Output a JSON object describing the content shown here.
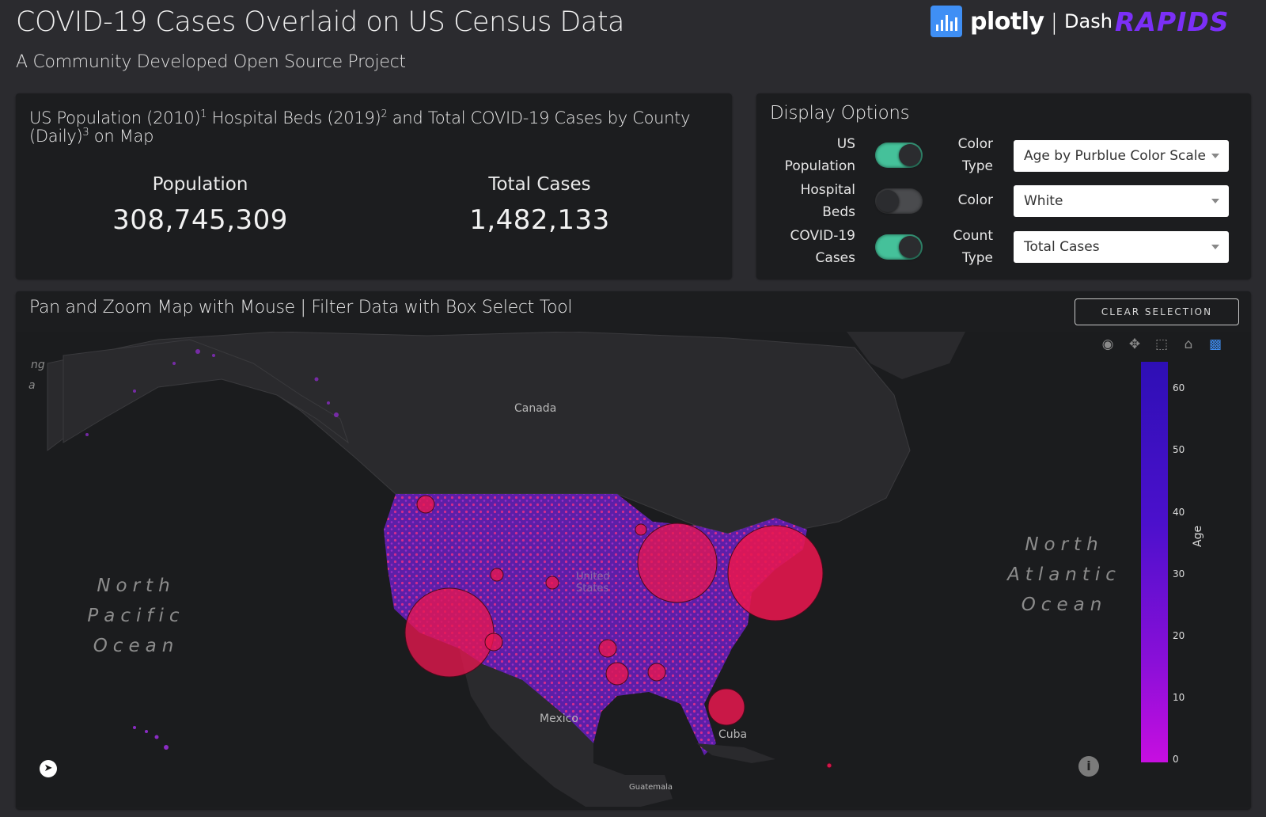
{
  "header": {
    "title": "COVID-19 Cases Overlaid on US Census Data",
    "subtitle": "A Community Developed Open Source Project",
    "brand_plotly": "plotly",
    "brand_dash": "Dash",
    "brand_rapids": "RAPIDS",
    "accent_color": "#7b2ff7"
  },
  "stats": {
    "heading_1": "US Population (2010)",
    "sup_1": "1",
    "heading_2": " Hospital Beds (2019)",
    "sup_2": "2",
    "heading_3": " and Total COVID-19 Cases by County (Daily)",
    "sup_3": "3",
    "heading_4": " on Map",
    "population_label": "Population",
    "population_value": "308,745,309",
    "cases_label": "Total Cases",
    "cases_value": "1,482,133"
  },
  "options": {
    "title": "Display Options",
    "population_label": "US Population",
    "population_on": true,
    "beds_label": "Hospital Beds",
    "beds_on": false,
    "covid_label": "COVID-19 Cases",
    "covid_on": true,
    "color_type_label": "Color Type",
    "color_type_value": "Age by Purblue Color Scale",
    "color_label": "Color",
    "color_value": "White",
    "count_type_label": "Count Type",
    "count_type_value": "Total Cases",
    "toggle_on_color": "#45c19a"
  },
  "map": {
    "title": "Pan and Zoom Map with Mouse | Filter Data with Box Select Tool",
    "clear_label": "CLEAR SELECTION",
    "ocean_pacific": "North Pacific Ocean",
    "ocean_atlantic": "North Atlantic Ocean",
    "place_canada": "Canada",
    "place_mexico": "Mexico",
    "place_cuba": "Cuba",
    "place_guatemala": "Guatemala",
    "place_us": "United States",
    "edge_label_1": "ng",
    "edge_label_2": "a",
    "colorbar": {
      "title": "Age",
      "ticks": [
        "60",
        "50",
        "40",
        "30",
        "20",
        "10",
        "0"
      ],
      "range": [
        0,
        65
      ],
      "colors": [
        "#c70ee0",
        "#2e0fb5"
      ]
    },
    "case_bubble_color": "#e8174f",
    "modebar_icons": [
      "camera-icon",
      "pan-icon",
      "box-select-icon",
      "home-icon",
      "plotly-icon"
    ]
  }
}
